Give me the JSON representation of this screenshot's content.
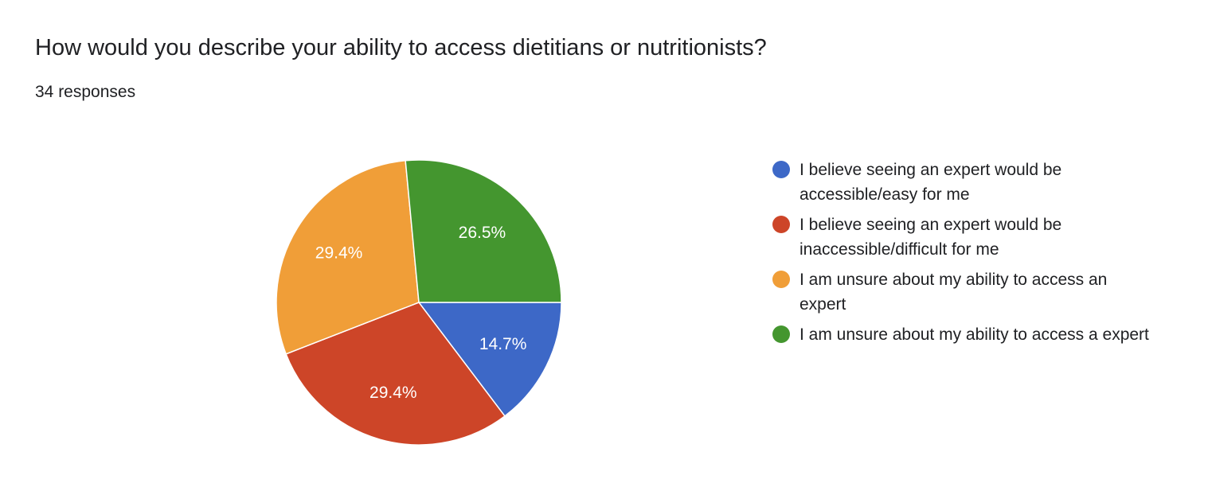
{
  "form": {
    "question": "How would you describe your ability to access dietitians or nutritionists?",
    "responses": "34 responses"
  },
  "chart_data": {
    "type": "pie",
    "categories": [
      "I believe seeing an expert would be accessible/easy for me",
      "I believe seeing an expert would be inaccessible/difficult for me",
      "I am unsure about my ability to access an expert",
      "I am unsure about my ability to access a expert"
    ],
    "values": [
      14.7,
      29.4,
      29.4,
      26.5
    ],
    "data_labels": [
      "14.7%",
      "29.4%",
      "29.4%",
      "26.5%"
    ],
    "colors": [
      "#3d68c7",
      "#cd4528",
      "#f09e38",
      "#44962f"
    ],
    "start": "3 o'clock, clockwise",
    "legend_position": "right"
  }
}
